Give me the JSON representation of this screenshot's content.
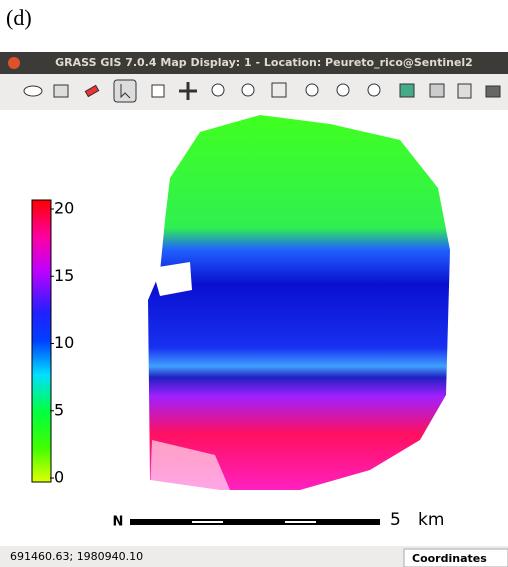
{
  "panel_label": "(d)",
  "window": {
    "title": "GRASS GIS 7.0.4 Map Display: 1 - Location: Peureto_rico@Sentinel2"
  },
  "legend": {
    "range": [
      0,
      20
    ],
    "ticks": [
      20,
      15,
      10,
      5,
      0
    ]
  },
  "scale_bar": {
    "north": "N",
    "distance": "5",
    "unit": "km"
  },
  "status_bar": {
    "coordinates": "691460.63; 1980940.10",
    "mode": "Coordinates"
  }
}
